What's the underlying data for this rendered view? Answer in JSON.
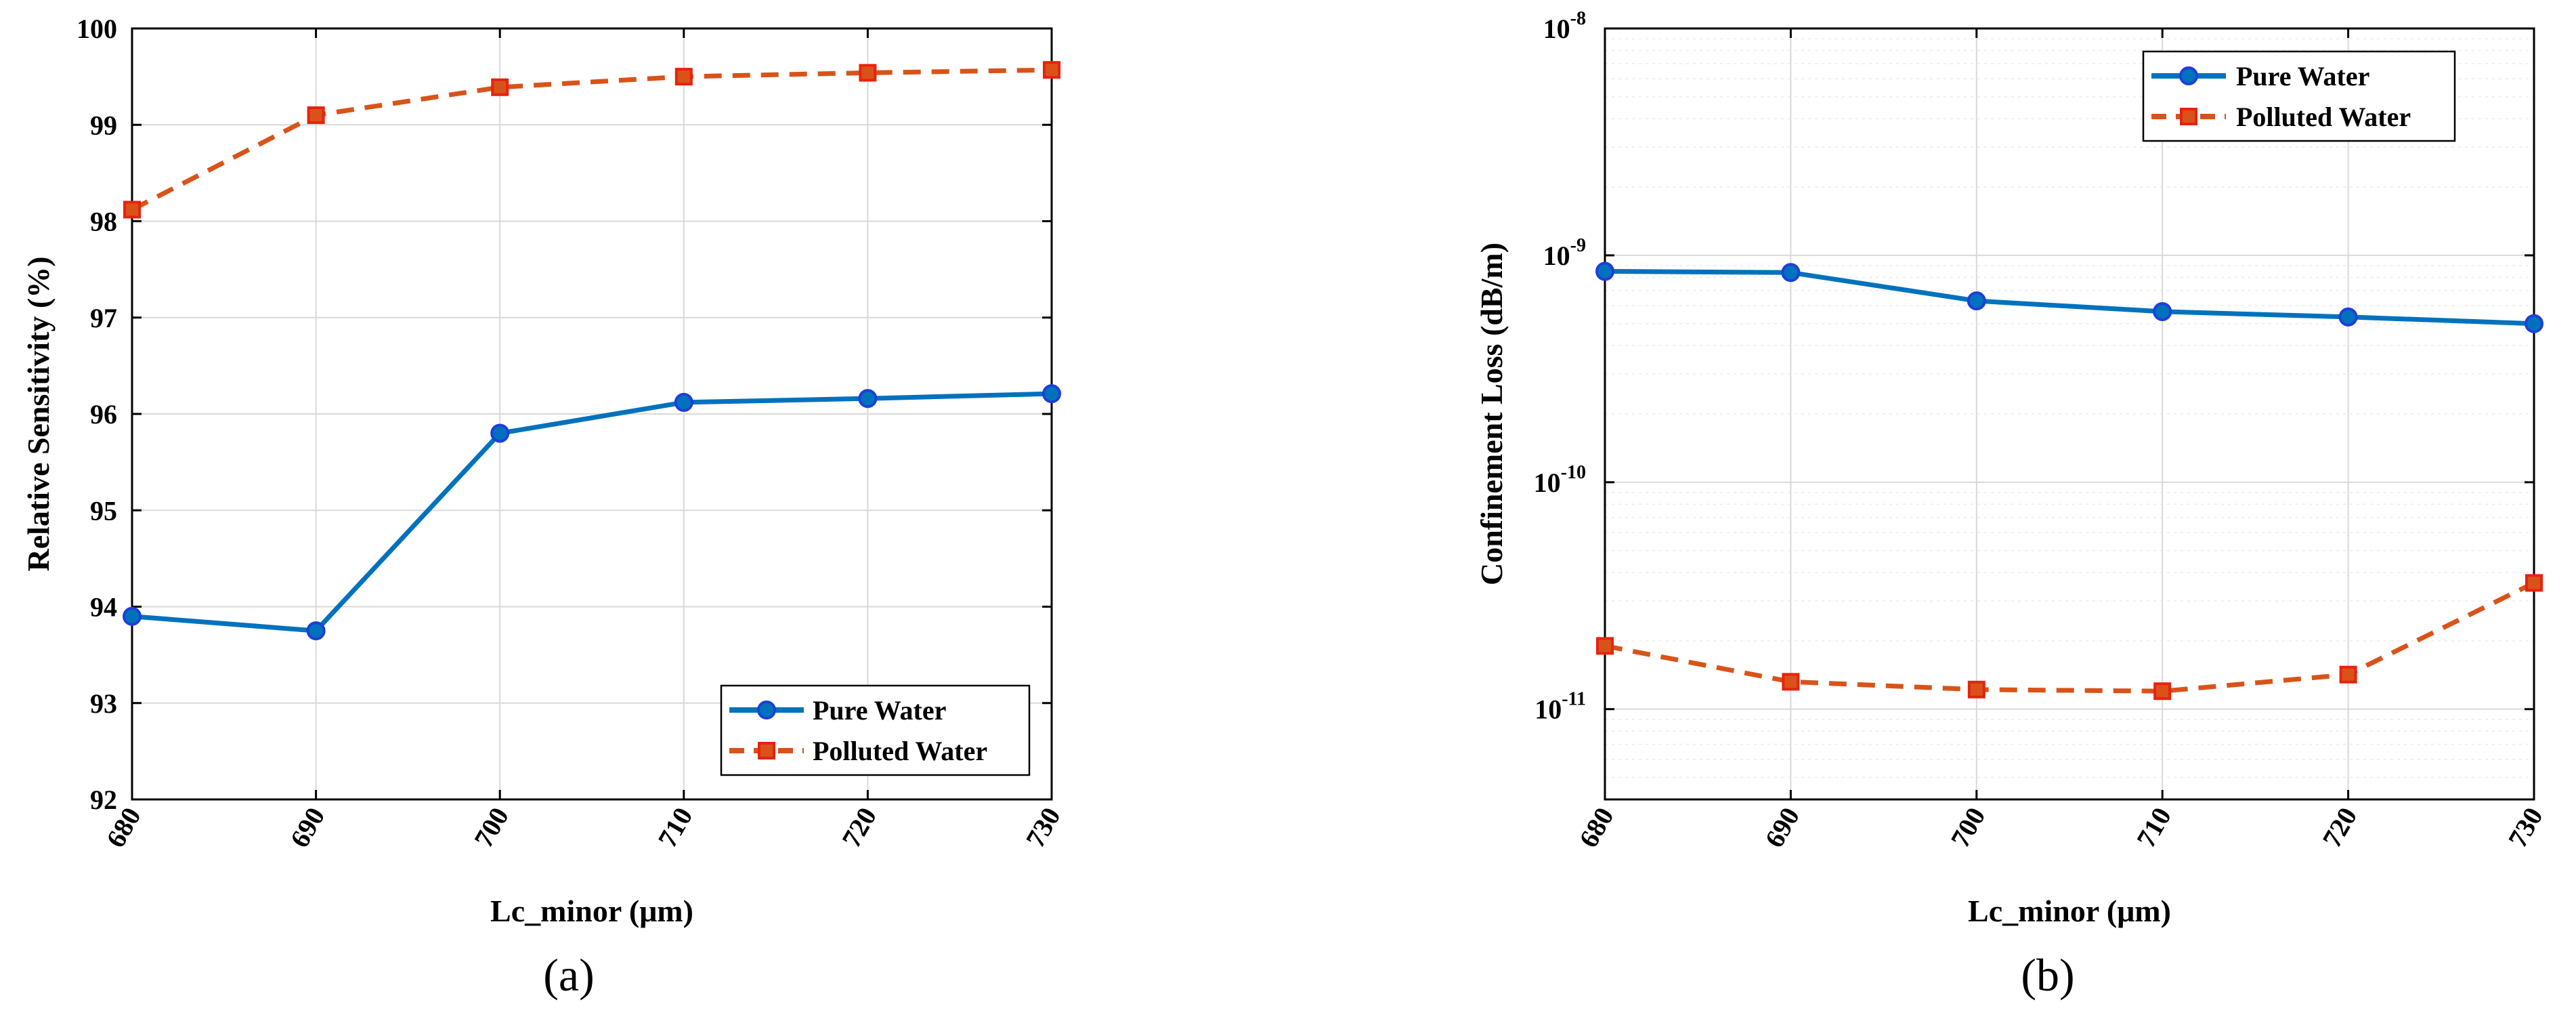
{
  "figure": {
    "panels": [
      {
        "caption": "(a)",
        "ylabel": "Relative Sensitivity (%)",
        "xlabel": "Lc_minor (μm)"
      },
      {
        "caption": "(b)",
        "ylabel": "Confinement Loss (dB/m)",
        "xlabel": "Lc_minor (μm)"
      }
    ]
  },
  "colors": {
    "pure": "#0072BD",
    "pure_marker_edge": "#1f3fd8",
    "polluted": "#D95319",
    "polluted_marker_edge": "#e8220f",
    "grid": "#d9d9d9"
  },
  "chart_data": [
    {
      "type": "line",
      "caption": "(a)",
      "xlabel": "Lc_minor (μm)",
      "ylabel": "Relative Sensitivity (%)",
      "x": [
        680,
        690,
        700,
        710,
        720,
        730
      ],
      "x_tick_labels": [
        "680",
        "690",
        "700",
        "710",
        "720",
        "730"
      ],
      "xlim": [
        680,
        730
      ],
      "ylim": [
        92,
        100
      ],
      "yscale": "linear",
      "y_ticks": [
        92,
        93,
        94,
        95,
        96,
        97,
        98,
        99,
        100
      ],
      "y_tick_labels": [
        "92",
        "93",
        "94",
        "95",
        "96",
        "97",
        "98",
        "99",
        "100"
      ],
      "grid": true,
      "legend_position": "bottom-right",
      "series": [
        {
          "name": "Pure Water",
          "style": "solid-circle",
          "values": [
            93.9,
            93.75,
            95.8,
            96.12,
            96.16,
            96.21
          ]
        },
        {
          "name": "Polluted Water",
          "style": "dashed-square",
          "values": [
            98.12,
            99.1,
            99.39,
            99.5,
            99.54,
            99.57
          ]
        }
      ]
    },
    {
      "type": "line",
      "caption": "(b)",
      "xlabel": "Lc_minor (μm)",
      "ylabel": "Confinement Loss (dB/m)",
      "x": [
        680,
        690,
        700,
        710,
        720,
        730
      ],
      "x_tick_labels": [
        "680",
        "690",
        "700",
        "710",
        "720",
        "730"
      ],
      "xlim": [
        680,
        730
      ],
      "ylim": [
        4e-12,
        1e-08
      ],
      "yscale": "log",
      "y_ticks": [
        1e-11,
        1e-10,
        1e-09,
        1e-08
      ],
      "y_tick_labels": [
        {
          "base": "10",
          "exp": "-11"
        },
        {
          "base": "10",
          "exp": "-10"
        },
        {
          "base": "10",
          "exp": "-9"
        },
        {
          "base": "10",
          "exp": "-8"
        }
      ],
      "grid": true,
      "legend_position": "top-right",
      "series": [
        {
          "name": "Pure Water",
          "style": "solid-circle",
          "values": [
            8.5e-10,
            8.4e-10,
            6.3e-10,
            5.65e-10,
            5.35e-10,
            5e-10
          ]
        },
        {
          "name": "Polluted Water",
          "style": "dashed-square",
          "values": [
            1.9e-11,
            1.32e-11,
            1.22e-11,
            1.2e-11,
            1.42e-11,
            3.6e-11
          ]
        }
      ]
    }
  ]
}
